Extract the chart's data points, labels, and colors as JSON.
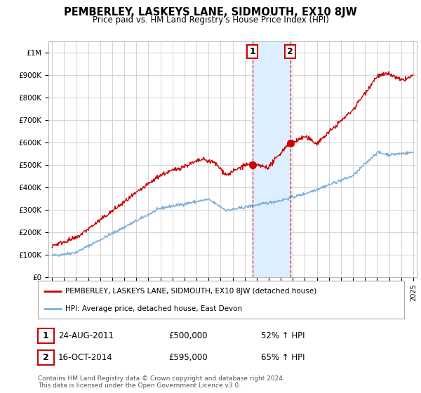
{
  "title": "PEMBERLEY, LASKEYS LANE, SIDMOUTH, EX10 8JW",
  "subtitle": "Price paid vs. HM Land Registry's House Price Index (HPI)",
  "legend_line1": "PEMBERLEY, LASKEYS LANE, SIDMOUTH, EX10 8JW (detached house)",
  "legend_line2": "HPI: Average price, detached house, East Devon",
  "sale1_date": "24-AUG-2011",
  "sale1_price": "£500,000",
  "sale1_hpi": "52% ↑ HPI",
  "sale1_year": 2011.65,
  "sale1_value": 500000,
  "sale2_date": "16-OCT-2014",
  "sale2_price": "£595,000",
  "sale2_hpi": "65% ↑ HPI",
  "sale2_year": 2014.79,
  "sale2_value": 595000,
  "footer": "Contains HM Land Registry data © Crown copyright and database right 2024.\nThis data is licensed under the Open Government Licence v3.0.",
  "red_color": "#cc0000",
  "blue_color": "#7aaedc",
  "shade_color": "#ddeeff",
  "bg_color": "#ffffff",
  "grid_color": "#cccccc",
  "ylim": [
    0,
    1050000
  ],
  "xlim": [
    1994.7,
    2025.3
  ]
}
